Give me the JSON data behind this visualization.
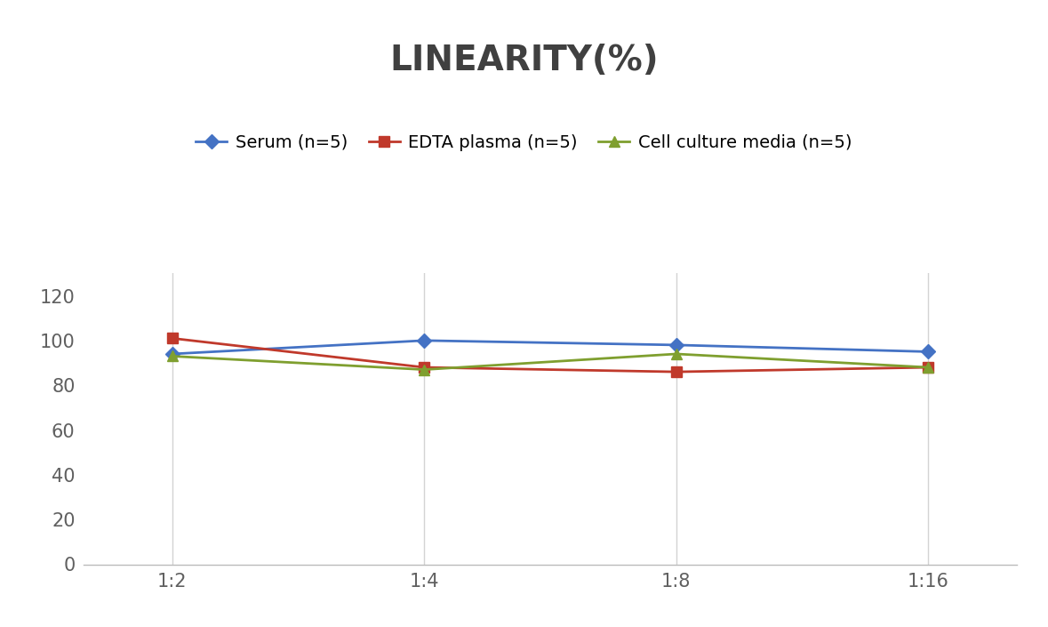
{
  "title": "LINEARITY(%)",
  "x_labels": [
    "1:2",
    "1:4",
    "1:8",
    "1:16"
  ],
  "x_positions": [
    0,
    1,
    2,
    3
  ],
  "series": [
    {
      "label": "Serum (n=5)",
      "values": [
        94,
        100,
        98,
        95
      ],
      "color": "#4472C4",
      "marker": "D",
      "linewidth": 2,
      "markersize": 8
    },
    {
      "label": "EDTA plasma (n=5)",
      "values": [
        101,
        88,
        86,
        88
      ],
      "color": "#C0392B",
      "marker": "s",
      "linewidth": 2,
      "markersize": 8
    },
    {
      "label": "Cell culture media (n=5)",
      "values": [
        93,
        87,
        94,
        88
      ],
      "color": "#7F9F2F",
      "marker": "^",
      "linewidth": 2,
      "markersize": 8
    }
  ],
  "ylim": [
    0,
    130
  ],
  "yticks": [
    0,
    20,
    40,
    60,
    80,
    100,
    120
  ],
  "grid_color": "#D3D3D3",
  "background_color": "#FFFFFF",
  "title_fontsize": 28,
  "tick_fontsize": 15,
  "legend_fontsize": 14,
  "title_color": "#404040",
  "tick_color": "#606060"
}
